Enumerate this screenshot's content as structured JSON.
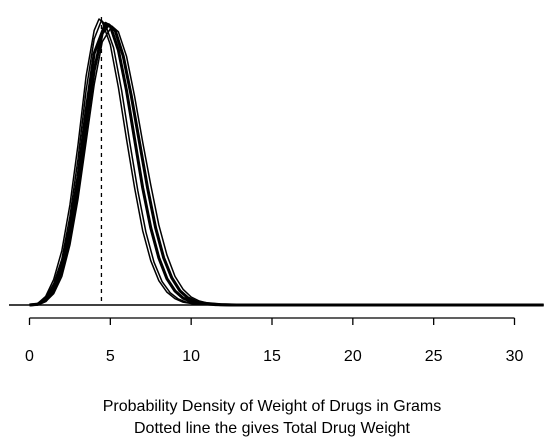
{
  "chart_data": {
    "type": "line",
    "xlabel_lines": [
      "Probability Density of Weight of Drugs in Grams",
      "Dotted line the gives Total Drug Weight"
    ],
    "xlim": [
      -1,
      31.8
    ],
    "ylim": [
      0,
      1
    ],
    "x_ticks": [
      0,
      5,
      10,
      15,
      20,
      25,
      30
    ],
    "x_tick_labels": [
      "0",
      "5",
      "10",
      "15",
      "20",
      "25",
      "30"
    ],
    "reference_line": {
      "x": 4.45,
      "style": "dotted"
    },
    "series": [
      {
        "mode": 4.3,
        "width": "thin",
        "x": [
          0,
          0.5,
          1,
          1.5,
          2,
          2.5,
          3,
          3.5,
          4,
          4.3,
          4.5,
          5,
          5.5,
          6,
          6.5,
          7,
          7.5,
          8,
          8.5,
          9,
          9.5,
          10,
          11,
          12,
          13,
          14,
          15,
          20,
          25,
          30,
          31.8
        ],
        "y": [
          0.0,
          0.005,
          0.03,
          0.09,
          0.19,
          0.35,
          0.56,
          0.8,
          0.96,
          1.0,
          0.99,
          0.91,
          0.76,
          0.58,
          0.41,
          0.26,
          0.155,
          0.085,
          0.045,
          0.022,
          0.01,
          0.005,
          0.001,
          0.0,
          0.0,
          0.0,
          0.0,
          0.0,
          0.0,
          0.0,
          0.0
        ]
      },
      {
        "mode": 4.45,
        "width": "thin",
        "x": [
          0,
          0.5,
          1,
          1.5,
          2,
          2.5,
          3,
          3.5,
          4,
          4.45,
          4.7,
          5.2,
          5.7,
          6.2,
          6.7,
          7.2,
          7.7,
          8.2,
          8.7,
          9.2,
          9.7,
          10.2,
          11.2,
          12.2,
          13,
          14,
          15,
          20,
          25,
          30,
          31.8
        ],
        "y": [
          0.0,
          0.004,
          0.025,
          0.075,
          0.16,
          0.31,
          0.51,
          0.75,
          0.93,
          0.995,
          0.98,
          0.9,
          0.75,
          0.57,
          0.4,
          0.255,
          0.15,
          0.082,
          0.043,
          0.021,
          0.01,
          0.005,
          0.001,
          0.0,
          0.0,
          0.0,
          0.0,
          0.0,
          0.0,
          0.0,
          0.0
        ]
      },
      {
        "mode": 4.7,
        "width": "thick",
        "x": [
          0,
          0.5,
          1,
          1.5,
          2,
          2.5,
          3,
          3.5,
          4,
          4.7,
          5,
          5.5,
          6,
          6.5,
          7,
          7.5,
          8,
          8.5,
          9,
          9.5,
          10,
          10.5,
          11.5,
          12.5,
          13.5,
          14,
          15,
          20,
          25,
          30,
          31.8
        ],
        "y": [
          0.0,
          0.003,
          0.02,
          0.06,
          0.14,
          0.27,
          0.45,
          0.68,
          0.88,
          0.985,
          0.975,
          0.89,
          0.75,
          0.58,
          0.41,
          0.27,
          0.165,
          0.092,
          0.049,
          0.024,
          0.012,
          0.006,
          0.0015,
          0.0,
          0.0,
          0.0,
          0.0,
          0.0,
          0.0,
          0.0,
          0.0
        ]
      },
      {
        "mode": 4.9,
        "width": "thick",
        "x": [
          0,
          0.5,
          1,
          1.5,
          2,
          2.5,
          3,
          3.5,
          4,
          4.5,
          4.9,
          5.3,
          5.8,
          6.3,
          6.8,
          7.3,
          7.8,
          8.3,
          8.8,
          9.3,
          9.8,
          10.3,
          10.8,
          11.8,
          12.8,
          13.8,
          15,
          20,
          25,
          30,
          31.8
        ],
        "y": [
          0.0,
          0.002,
          0.015,
          0.05,
          0.12,
          0.24,
          0.41,
          0.62,
          0.82,
          0.95,
          0.98,
          0.96,
          0.87,
          0.73,
          0.57,
          0.41,
          0.27,
          0.165,
          0.095,
          0.05,
          0.025,
          0.012,
          0.006,
          0.0015,
          0.0,
          0.0,
          0.0,
          0.0,
          0.0,
          0.0,
          0.0
        ]
      },
      {
        "mode": 5.1,
        "width": "thin",
        "x": [
          0,
          0.5,
          1,
          1.5,
          2,
          2.5,
          3,
          3.5,
          4,
          4.5,
          5.1,
          5.5,
          6,
          6.5,
          7,
          7.5,
          8,
          8.5,
          9,
          9.5,
          10,
          10.5,
          11,
          12,
          13,
          14,
          15,
          20,
          25,
          30,
          31.8
        ],
        "y": [
          0.0,
          0.002,
          0.012,
          0.04,
          0.1,
          0.21,
          0.37,
          0.57,
          0.77,
          0.92,
          0.975,
          0.955,
          0.87,
          0.73,
          0.57,
          0.42,
          0.28,
          0.175,
          0.1,
          0.055,
          0.028,
          0.014,
          0.007,
          0.002,
          0.0005,
          0.0,
          0.0,
          0.0,
          0.0,
          0.0,
          0.0
        ]
      }
    ]
  }
}
